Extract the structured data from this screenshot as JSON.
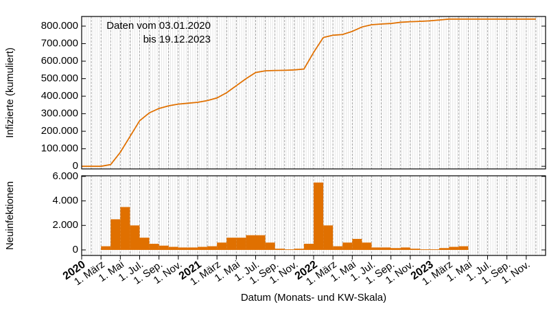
{
  "chart_data": [
    {
      "type": "line",
      "ylabel": "Infizierte (kumuliert)",
      "annotation": [
        "Daten vom 03.01.2020",
        "bis 19.12.2023"
      ],
      "color": "#e07000",
      "xlim": [
        "2020-01",
        "2024-01"
      ],
      "ylim": [
        -15000,
        855000
      ],
      "yticks": [
        0,
        {
          "value": 100000,
          "label": "100.000"
        },
        {
          "value": 200000,
          "label": "200.000"
        },
        {
          "value": 300000,
          "label": "300.000"
        },
        {
          "value": 400000,
          "label": "400.000"
        },
        {
          "value": 500000,
          "label": "500.000"
        },
        {
          "value": 600000,
          "label": "600.000"
        },
        {
          "value": 700000,
          "label": "700.000"
        },
        {
          "value": 800000,
          "label": "800.000"
        }
      ],
      "x": [
        "2020-01",
        "2020-02",
        "2020-03",
        "2020-04",
        "2020-05",
        "2020-06",
        "2020-07",
        "2020-08",
        "2020-09",
        "2020-10",
        "2020-11",
        "2020-12",
        "2021-01",
        "2021-02",
        "2021-03",
        "2021-04",
        "2021-05",
        "2021-06",
        "2021-07",
        "2021-08",
        "2021-09",
        "2021-10",
        "2021-11",
        "2021-12",
        "2022-01",
        "2022-02",
        "2022-03",
        "2022-04",
        "2022-05",
        "2022-06",
        "2022-07",
        "2022-08",
        "2022-09",
        "2022-10",
        "2022-11",
        "2022-12",
        "2023-01",
        "2023-02",
        "2023-03",
        "2023-04",
        "2023-05",
        "2023-06",
        "2023-07",
        "2023-08",
        "2023-09",
        "2023-10",
        "2023-11",
        "2023-12"
      ],
      "values": [
        0,
        0,
        0,
        10000,
        80000,
        170000,
        260000,
        305000,
        330000,
        345000,
        355000,
        360000,
        365000,
        375000,
        390000,
        420000,
        460000,
        500000,
        535000,
        545000,
        547000,
        548000,
        550000,
        555000,
        650000,
        735000,
        748000,
        752000,
        770000,
        795000,
        808000,
        812000,
        815000,
        822000,
        825000,
        827000,
        830000,
        835000,
        840000,
        840000,
        840000,
        840000,
        840000,
        840000,
        840000,
        840000,
        840000,
        840000
      ]
    },
    {
      "type": "bar",
      "ylabel": "Neuinfektionen",
      "xlabel": "Datum (Monats- und KW-Skala)",
      "color": "#e07000",
      "xlim": [
        "2020-01",
        "2024-01"
      ],
      "ylim": [
        -450,
        6050
      ],
      "yticks": [
        0,
        {
          "value": 2000,
          "label": "2.000"
        },
        {
          "value": 4000,
          "label": "4.000"
        },
        {
          "value": 6000,
          "label": "6.000"
        }
      ],
      "xticks": [
        {
          "value": "2020-01",
          "label": "2020"
        },
        {
          "value": "2020-03",
          "label": "1. März"
        },
        {
          "value": "2020-05",
          "label": "1. Mai"
        },
        {
          "value": "2020-07",
          "label": "1. Jul."
        },
        {
          "value": "2020-09",
          "label": "1. Sep."
        },
        {
          "value": "2020-11",
          "label": "1. Nov."
        },
        {
          "value": "2021-01",
          "label": "2021"
        },
        {
          "value": "2021-03",
          "label": "1. März"
        },
        {
          "value": "2021-05",
          "label": "1. Mai"
        },
        {
          "value": "2021-07",
          "label": "1. Jul."
        },
        {
          "value": "2021-09",
          "label": "1. Sep."
        },
        {
          "value": "2021-11",
          "label": "1. Nov."
        },
        {
          "value": "2022-01",
          "label": "2022"
        },
        {
          "value": "2022-03",
          "label": "1. März"
        },
        {
          "value": "2022-05",
          "label": "1. Mai"
        },
        {
          "value": "2022-07",
          "label": "1. Jul."
        },
        {
          "value": "2022-09",
          "label": "1. Sep."
        },
        {
          "value": "2022-11",
          "label": "1. Nov."
        },
        {
          "value": "2023-01",
          "label": "2023"
        },
        {
          "value": "2023-03",
          "label": "1. März"
        },
        {
          "value": "2023-05",
          "label": "1. Mai"
        },
        {
          "value": "2023-07",
          "label": "1. Jul."
        },
        {
          "value": "2023-09",
          "label": "1. Sep."
        },
        {
          "value": "2023-11",
          "label": "1. Nov."
        }
      ],
      "x": [
        "2020-03",
        "2020-04",
        "2020-05",
        "2020-06",
        "2020-07",
        "2020-08",
        "2020-09",
        "2020-10",
        "2020-11",
        "2020-12",
        "2021-01",
        "2021-02",
        "2021-03",
        "2021-04",
        "2021-05",
        "2021-06",
        "2021-07",
        "2021-08",
        "2021-09",
        "2021-10",
        "2021-11",
        "2021-12",
        "2022-01",
        "2022-02",
        "2022-03",
        "2022-04",
        "2022-05",
        "2022-06",
        "2022-07",
        "2022-08",
        "2022-09",
        "2022-10",
        "2022-11",
        "2022-12",
        "2023-01",
        "2023-02",
        "2023-03",
        "2023-04"
      ],
      "values": [
        300,
        2500,
        3500,
        2000,
        1000,
        500,
        350,
        250,
        200,
        200,
        250,
        300,
        600,
        1000,
        1000,
        1200,
        1200,
        600,
        100,
        50,
        100,
        500,
        5500,
        2000,
        300,
        600,
        900,
        600,
        200,
        200,
        150,
        200,
        100,
        50,
        50,
        150,
        250,
        300
      ]
    }
  ]
}
